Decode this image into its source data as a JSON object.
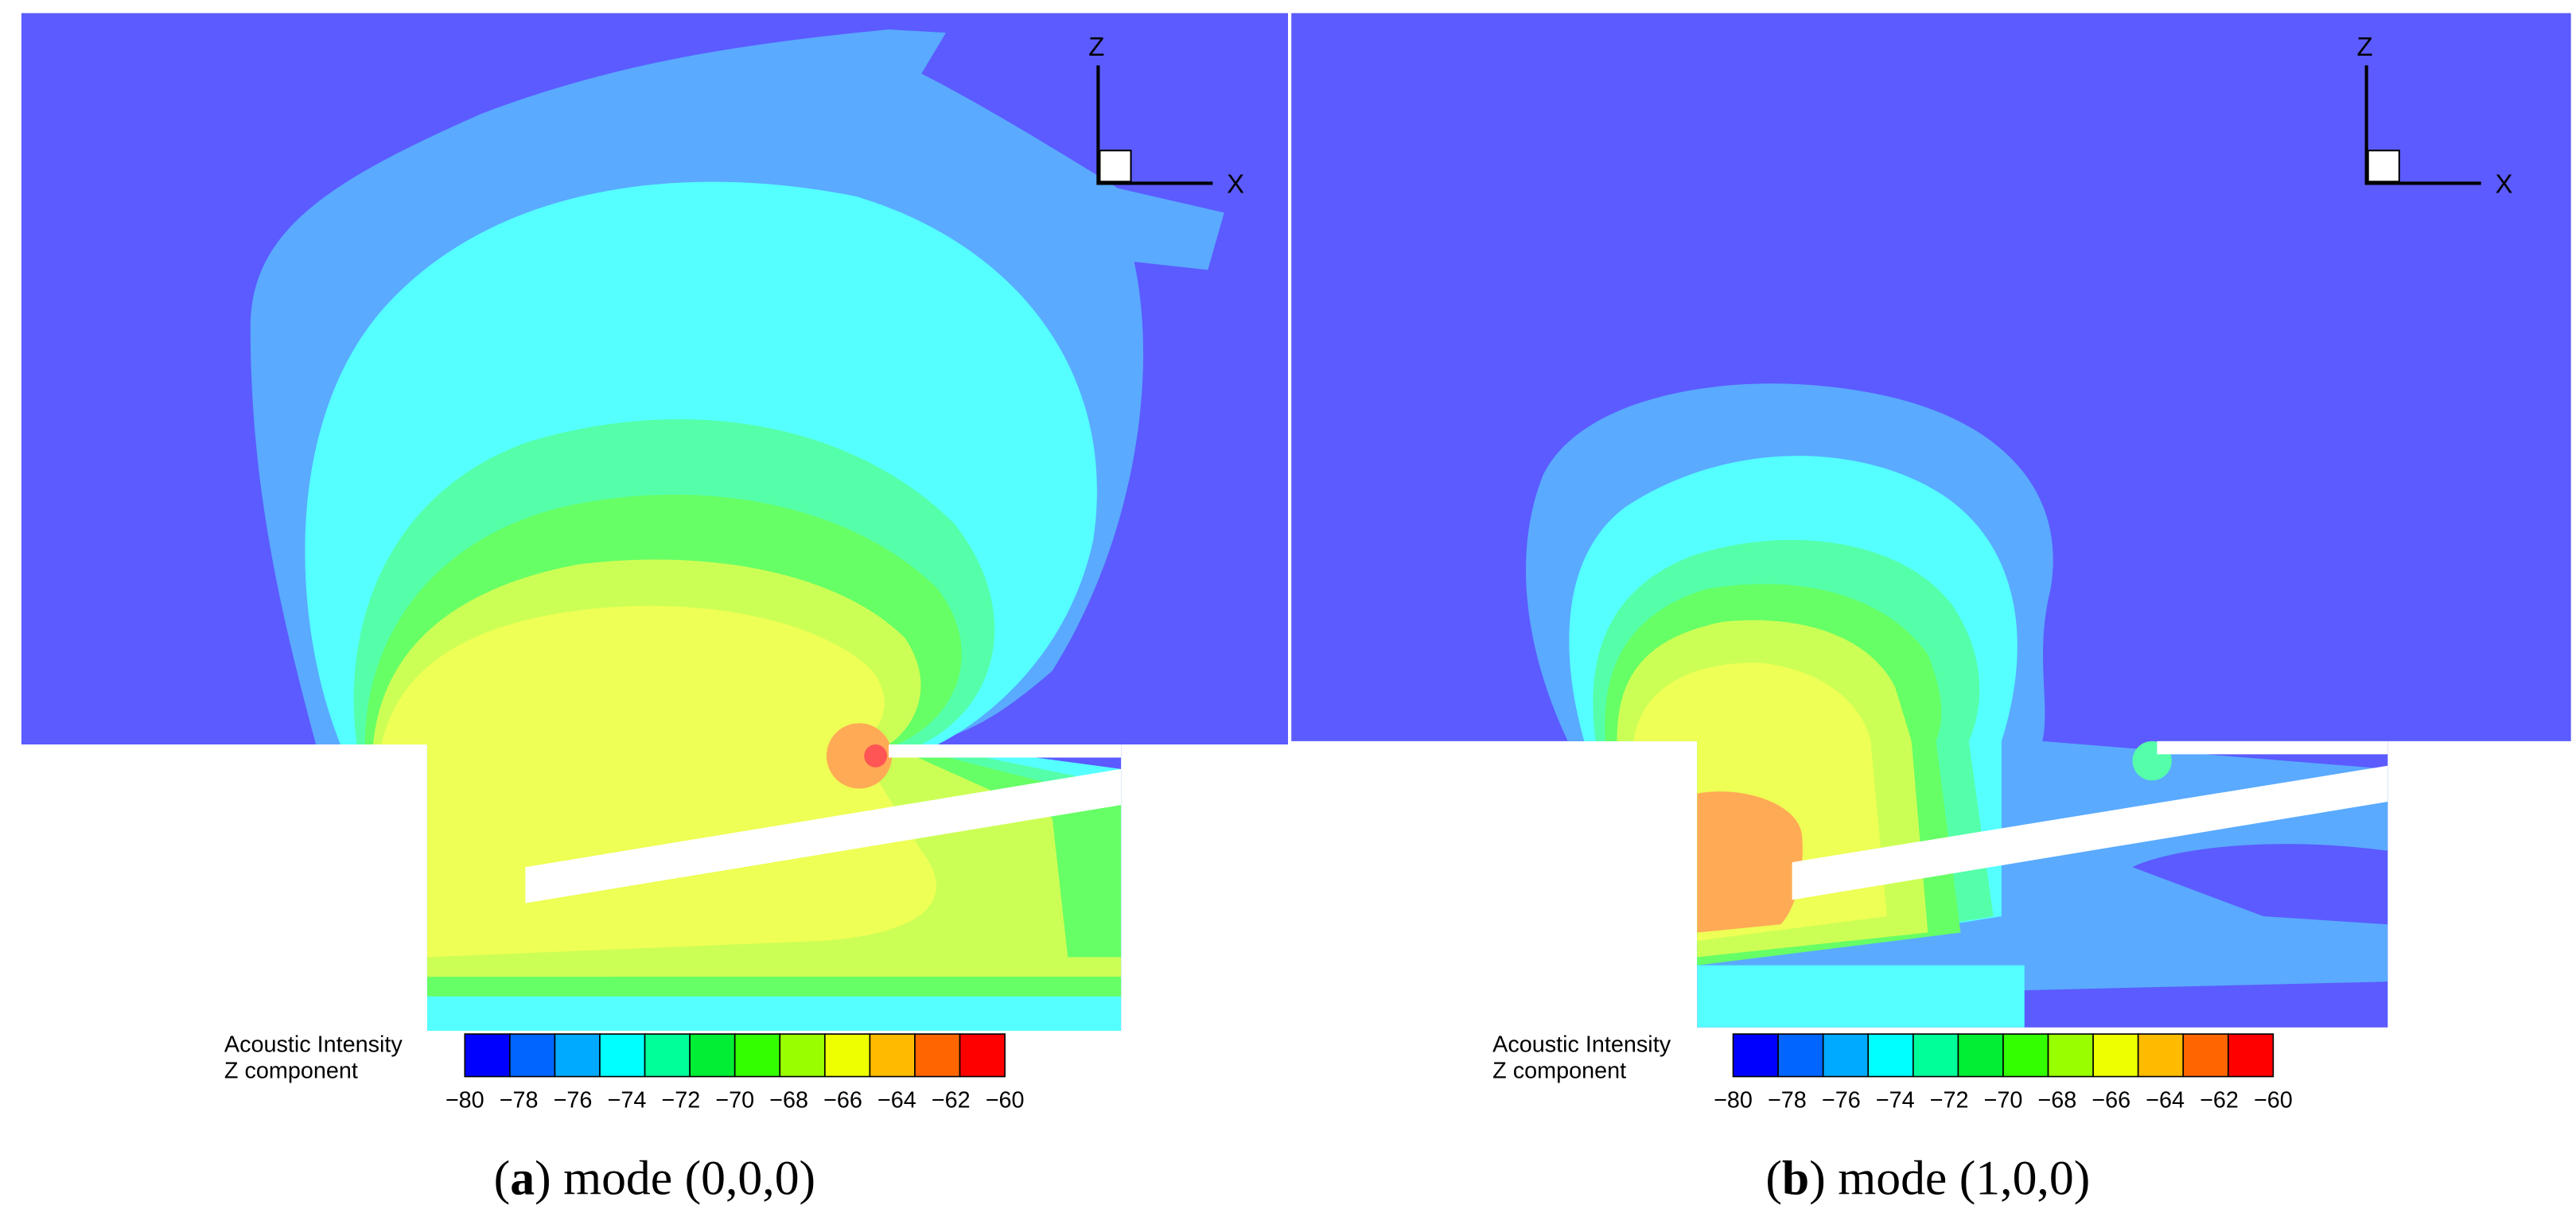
{
  "panels": [
    {
      "caption": [
        "(",
        "a",
        ") mode (0,0,0)"
      ],
      "axes": {
        "z": "Z",
        "x": "X"
      },
      "legend": {
        "title": [
          "Acoustic Intensity",
          "Z component"
        ],
        "ticks": [
          "−80",
          "−78",
          "−76",
          "−74",
          "−72",
          "−70",
          "−68",
          "−66",
          "−64",
          "−62",
          "−60"
        ]
      }
    },
    {
      "caption": [
        "(",
        "b",
        ") mode (1,0,0)"
      ],
      "axes": {
        "z": "Z",
        "x": "X"
      },
      "legend": {
        "title": [
          "Acoustic Intensity",
          "Z component"
        ],
        "ticks": [
          "−80",
          "−78",
          "−76",
          "−74",
          "−72",
          "−70",
          "−68",
          "−66",
          "−64",
          "−62",
          "−60"
        ]
      }
    }
  ]
}
